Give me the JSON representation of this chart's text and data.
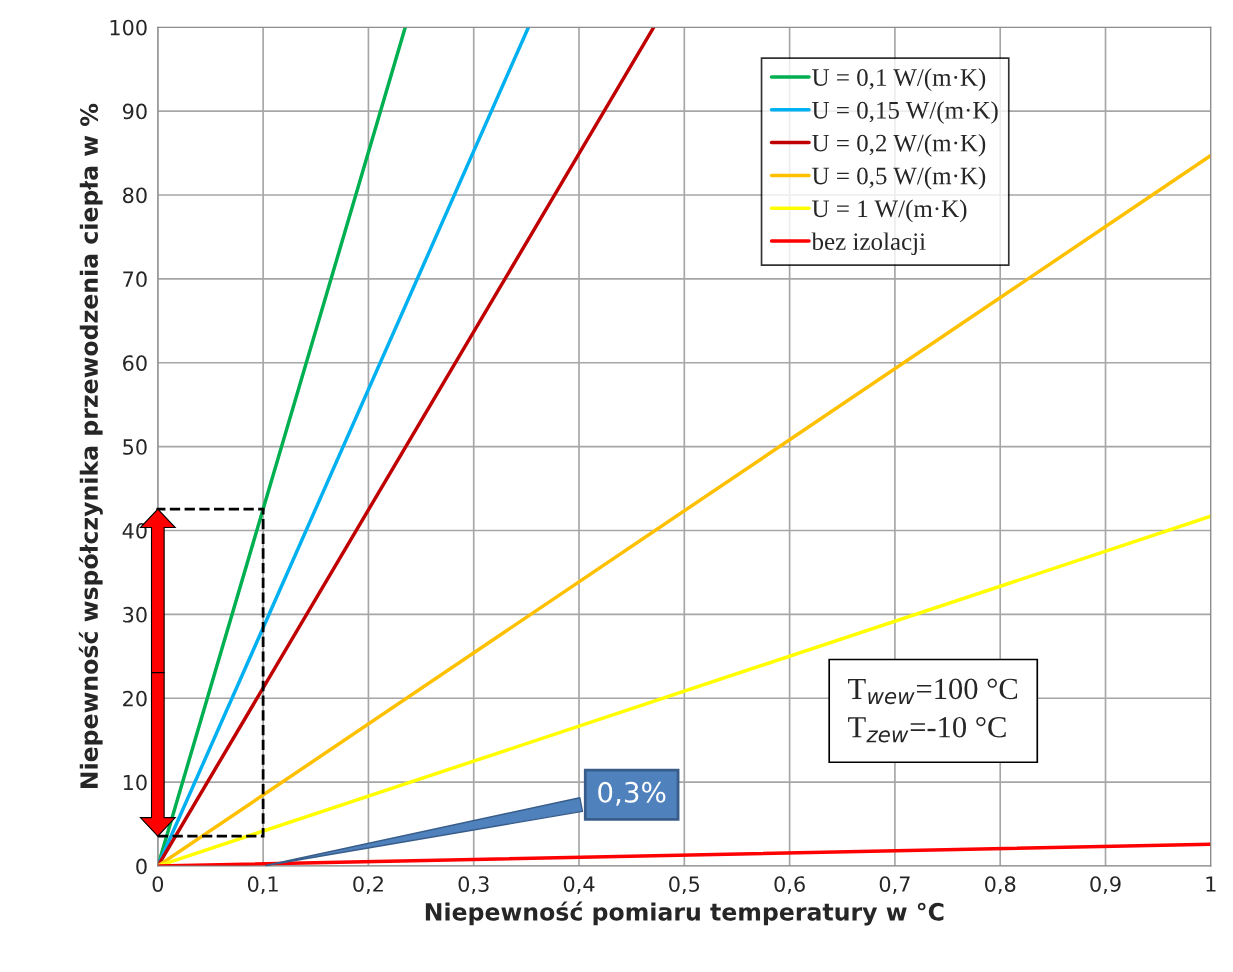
{
  "chart_data": {
    "type": "line",
    "xlabel": "Niepewność pomiaru temperatury w °C",
    "ylabel": "Niepewność współczynika przewodzenia ciepła w %",
    "series": [
      {
        "name": "U = 0,1 W/(m·K)",
        "color": "#00b050",
        "x": [
          0,
          0.235
        ],
        "values": [
          0,
          100
        ]
      },
      {
        "name": "U = 0,15 W/(m·K)",
        "color": "#00b0f0",
        "x": [
          0,
          0.352
        ],
        "values": [
          0,
          100
        ]
      },
      {
        "name": "U = 0,2 W/(m·K)",
        "color": "#c00000",
        "x": [
          0,
          0.471
        ],
        "values": [
          0,
          100
        ]
      },
      {
        "name": "U = 0,5 W/(m·K)",
        "color": "#ffc000",
        "x": [
          0,
          1
        ],
        "values": [
          0,
          84.7
        ]
      },
      {
        "name": "U = 1 W/(m·K)",
        "color": "#ffff00",
        "x": [
          0,
          1
        ],
        "values": [
          0,
          41.7
        ]
      },
      {
        "name": "bez izolacji",
        "color": "#ff0000",
        "x": [
          0,
          1
        ],
        "values": [
          0,
          2.6
        ]
      }
    ],
    "xlim": [
      0,
      1
    ],
    "ylim": [
      0,
      100
    ],
    "xticks": [
      0,
      {
        "value": 0.1,
        "label": "0,1"
      },
      {
        "value": 0.2,
        "label": "0,2"
      },
      {
        "value": 0.3,
        "label": "0,3"
      },
      {
        "value": 0.4,
        "label": "0,4"
      },
      {
        "value": 0.5,
        "label": "0,5"
      },
      {
        "value": 0.6,
        "label": "0,6"
      },
      {
        "value": 0.7,
        "label": "0,7"
      },
      {
        "value": 0.8,
        "label": "0,8"
      },
      {
        "value": 0.9,
        "label": "0,9"
      },
      1
    ],
    "yticks": [
      0,
      10,
      20,
      30,
      40,
      50,
      60,
      70,
      80,
      90,
      100
    ],
    "annotations": [
      {
        "text": "0,3%",
        "x": 0.1,
        "y": 0
      },
      "T$_{wew}$=100 °C\nT$_{zew}$=-10 °C"
    ],
    "grid": true,
    "legend": "top right",
    "marker": "none",
    "line_style": "solid"
  }
}
